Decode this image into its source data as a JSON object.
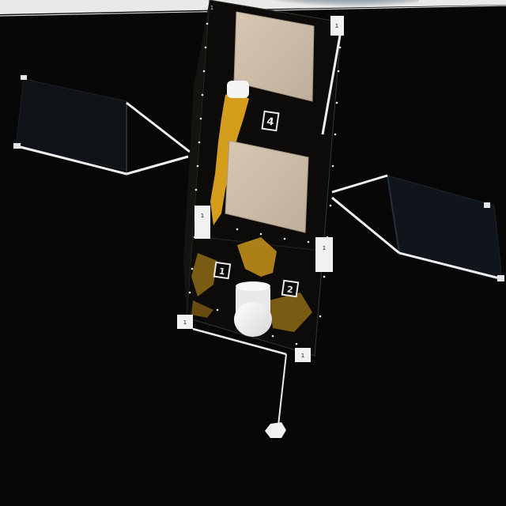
{
  "scene": {
    "subject": "satellite",
    "background": "space",
    "colors": {
      "space": "#070707",
      "body": "#0c0b09",
      "gold_foil": "#e0a51d",
      "panel": "#c9b8a4",
      "boom": "#f2f2f2",
      "earth_limb": "#9fd0f5",
      "solar_panel": "#111418"
    }
  },
  "markers": {
    "top_front": "4",
    "bottom_left": "1",
    "bottom_right": "2",
    "corner_tl": "1",
    "corner_tr": "1",
    "corner_ml": "1",
    "corner_mr": "1",
    "corner_bl": "1",
    "corner_br": "1"
  }
}
